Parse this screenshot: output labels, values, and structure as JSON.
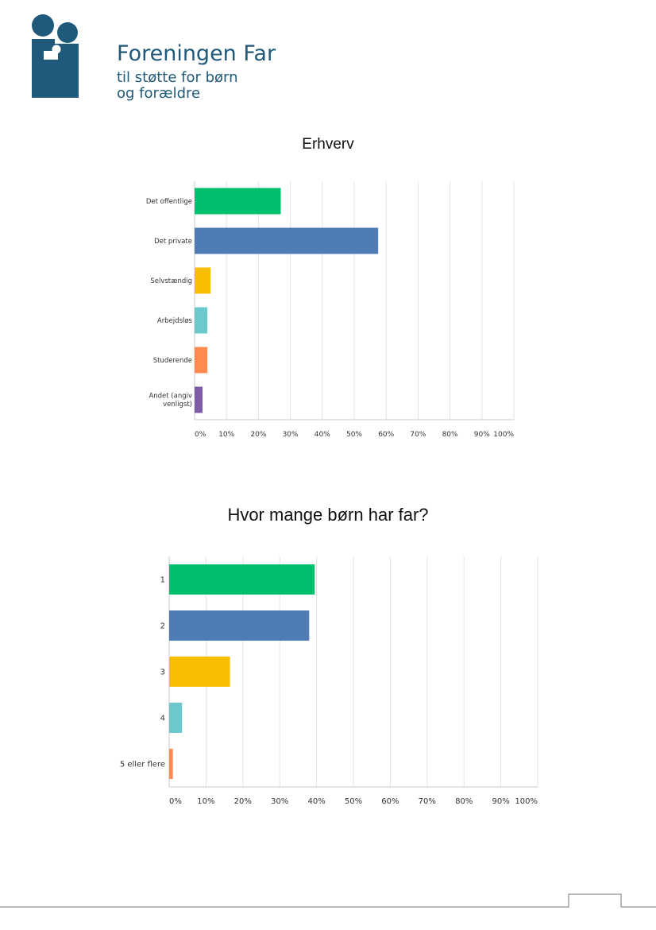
{
  "logo": {
    "name": "Foreningen Far",
    "tagline_1": "til støtte for børn",
    "tagline_2": "og forældre",
    "color": "#1f5a7a"
  },
  "chart_data": [
    {
      "type": "bar",
      "orientation": "horizontal",
      "title": "Erhverv",
      "categories": [
        "Det offentlige",
        "Det private",
        "Selvstændig",
        "Arbejdsløs",
        "Studerende",
        "Andet (angiv venligst)"
      ],
      "category_lines": [
        [
          "Det offentlige"
        ],
        [
          "Det private"
        ],
        [
          "Selvstændig"
        ],
        [
          "Arbejdsløs"
        ],
        [
          "Studerende"
        ],
        [
          "Andet (angiv",
          "venligst)"
        ]
      ],
      "values": [
        27,
        57.5,
        5,
        4,
        4,
        2.5
      ],
      "colors": [
        "#00bf6f",
        "#507cb6",
        "#f9be00",
        "#6bc8cd",
        "#ff8b4f",
        "#7d5ba6"
      ],
      "xlim": [
        0,
        100
      ],
      "ticks": [
        "0%",
        "10%",
        "20%",
        "30%",
        "40%",
        "50%",
        "60%",
        "70%",
        "80%",
        "90%",
        "100%"
      ],
      "grid": true
    },
    {
      "type": "bar",
      "orientation": "horizontal",
      "title": "Hvor mange børn har far?",
      "categories": [
        "1",
        "2",
        "3",
        "4",
        "5 eller flere"
      ],
      "category_lines": [
        [
          "1"
        ],
        [
          "2"
        ],
        [
          "3"
        ],
        [
          "4"
        ],
        [
          "5 eller flere"
        ]
      ],
      "values": [
        39.5,
        38,
        16.5,
        3.5,
        1
      ],
      "colors": [
        "#00bf6f",
        "#507cb6",
        "#f9be00",
        "#6bc8cd",
        "#ff8b4f"
      ],
      "xlim": [
        0,
        100
      ],
      "ticks": [
        "0%",
        "10%",
        "20%",
        "30%",
        "40%",
        "50%",
        "60%",
        "70%",
        "80%",
        "90%",
        "100%"
      ],
      "grid": true
    }
  ]
}
